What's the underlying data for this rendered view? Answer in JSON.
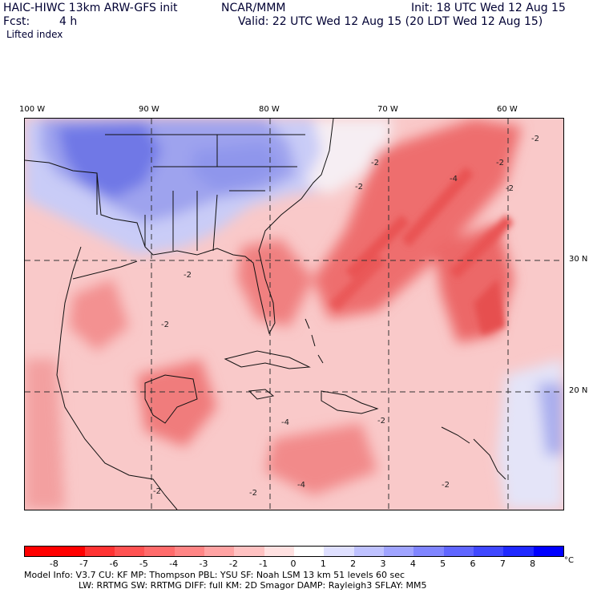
{
  "header": {
    "model": "HAIC-HIWC 13km ARW-GFS init",
    "org": "NCAR/MMM",
    "fcst_label": "Fcst:",
    "fcst_value": "4 h",
    "init": "Init: 18 UTC Wed 12 Aug 15",
    "valid": "Valid: 22 UTC Wed 12 Aug 15 (20 LDT Wed 12 Aug 15)",
    "field": "Lifted index"
  },
  "map": {
    "lon_labels": [
      "100 W",
      "90 W",
      "80 W",
      "70 W",
      "60 W"
    ],
    "lat_labels": [
      "30 N",
      "20 N"
    ],
    "contour_labels": [
      "-2",
      "-4",
      "-2",
      "-2",
      "-2",
      "-4",
      "-2",
      "-2",
      "-2",
      "-2",
      "-2",
      "-4",
      "-2",
      "-2"
    ]
  },
  "legend": {
    "ticks": [
      "-8",
      "-7",
      "-6",
      "-5",
      "-4",
      "-3",
      "-2",
      "-1",
      "0",
      "1",
      "2",
      "3",
      "4",
      "5",
      "6",
      "7",
      "8"
    ],
    "unit": "°C",
    "colors": [
      "#ff0000",
      "#ff3333",
      "#ff5252",
      "#ff6b6b",
      "#ff8585",
      "#ffa3a3",
      "#ffc2c2",
      "#ffe1e1",
      "#ffffff",
      "#dfe0ff",
      "#bfc2ff",
      "#a0a4ff",
      "#8085ff",
      "#6066ff",
      "#4048ff",
      "#2029ff",
      "#0000ff"
    ]
  },
  "footer": {
    "line1": "Model Info: V3.7     CU: KF      MP: Thompson      PBL: YSU       SF: Noah LSM      13 km    51 levels    60 sec",
    "line2": "LW: RRTMG     SW: RRTMG   DIFF: full    KM: 2D Smagor DAMP: Rayleigh3    SFLAY: MM5"
  }
}
